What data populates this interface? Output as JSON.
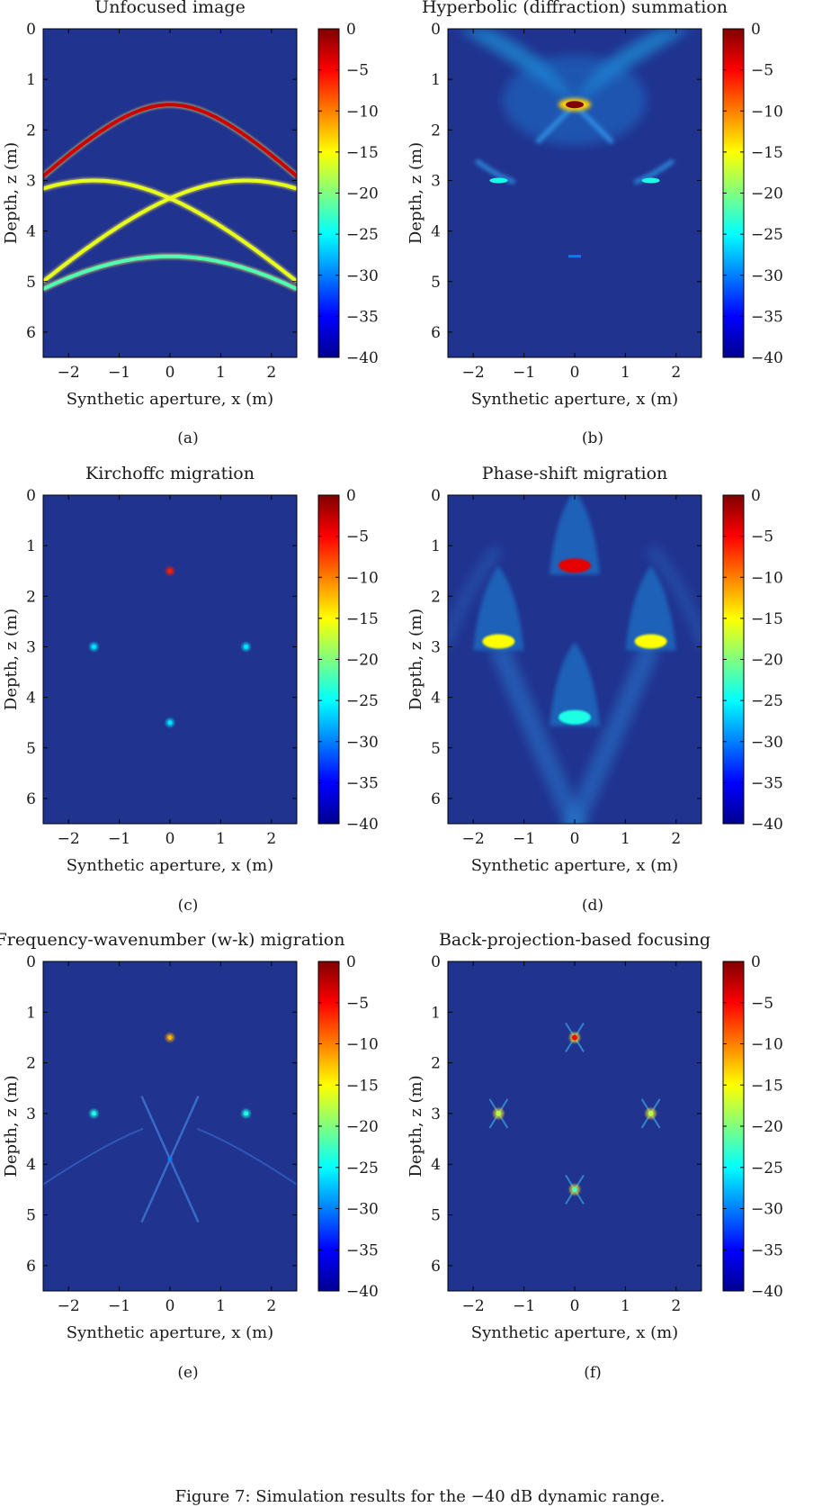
{
  "figure": {
    "caption": "Figure 7: Simulation results for the −40 dB dynamic range."
  },
  "colors": {
    "background": "#20338f",
    "jet": [
      "#00008f",
      "#0000ff",
      "#00ffff",
      "#ffff00",
      "#ff0000",
      "#800000"
    ]
  },
  "chart_data": [
    {
      "type": "heatmap",
      "panel": "(a)",
      "title": "Unfocused image",
      "xlabel": "Synthetic aperture, x (m)",
      "ylabel": "Depth, z (m)",
      "xlim": [
        -2.5,
        2.5
      ],
      "ylim": [
        6.5,
        0
      ],
      "xticks": [
        -2,
        -1,
        0,
        1,
        2
      ],
      "yticks": [
        0,
        1,
        2,
        3,
        4,
        5,
        6
      ],
      "colorbar": {
        "range": [
          -40,
          0
        ],
        "ticks": [
          0,
          -5,
          -10,
          -15,
          -20,
          -25,
          -30,
          -35,
          -40
        ]
      },
      "features": [
        {
          "kind": "hyperbola",
          "x0": 0,
          "z0": 1.5,
          "dB": -3
        },
        {
          "kind": "hyperbola",
          "x0": -1.5,
          "z0": 3.0,
          "dB": -16
        },
        {
          "kind": "hyperbola",
          "x0": 1.5,
          "z0": 3.0,
          "dB": -16
        },
        {
          "kind": "hyperbola",
          "x0": 0,
          "z0": 4.5,
          "dB": -22
        }
      ]
    },
    {
      "type": "heatmap",
      "panel": "(b)",
      "title": "Hyperbolic (diffraction) summation",
      "xlabel": "Synthetic aperture, x (m)",
      "ylabel": "Depth, z (m)",
      "xlim": [
        -2.5,
        2.5
      ],
      "ylim": [
        6.5,
        0
      ],
      "xticks": [
        -2,
        -1,
        0,
        1,
        2
      ],
      "yticks": [
        0,
        1,
        2,
        3,
        4,
        5,
        6
      ],
      "colorbar": {
        "range": [
          -40,
          0
        ],
        "ticks": [
          0,
          -5,
          -10,
          -15,
          -20,
          -25,
          -30,
          -35,
          -40
        ]
      },
      "features": [
        {
          "kind": "fan",
          "x0": 0,
          "z0": 1.5,
          "dB": 0
        },
        {
          "kind": "streak",
          "x0": -1.5,
          "z0": 3.0,
          "dB": -24
        },
        {
          "kind": "streak",
          "x0": 1.5,
          "z0": 3.0,
          "dB": -24
        },
        {
          "kind": "dash",
          "x0": 0,
          "z0": 4.5,
          "dB": -30
        }
      ]
    },
    {
      "type": "heatmap",
      "panel": "(c)",
      "title": "Kirchoffc migration",
      "xlabel": "Synthetic aperture, x (m)",
      "ylabel": "Depth, z (m)",
      "xlim": [
        -2.5,
        2.5
      ],
      "ylim": [
        6.5,
        0
      ],
      "xticks": [
        -2,
        -1,
        0,
        1,
        2
      ],
      "yticks": [
        0,
        1,
        2,
        3,
        4,
        5,
        6
      ],
      "colorbar": {
        "range": [
          -40,
          0
        ],
        "ticks": [
          0,
          -5,
          -10,
          -15,
          -20,
          -25,
          -30,
          -35,
          -40
        ]
      },
      "features": [
        {
          "kind": "point",
          "x0": 0,
          "z0": 1.5,
          "dB": -6
        },
        {
          "kind": "point",
          "x0": -1.5,
          "z0": 3.0,
          "dB": -26
        },
        {
          "kind": "point",
          "x0": 1.5,
          "z0": 3.0,
          "dB": -26
        },
        {
          "kind": "point",
          "x0": 0,
          "z0": 4.5,
          "dB": -26
        }
      ]
    },
    {
      "type": "heatmap",
      "panel": "(d)",
      "title": "Phase-shift migration",
      "xlabel": "Synthetic aperture, x (m)",
      "ylabel": "Depth, z (m)",
      "xlim": [
        -2.5,
        2.5
      ],
      "ylim": [
        6.5,
        0
      ],
      "xticks": [
        -2,
        -1,
        0,
        1,
        2
      ],
      "yticks": [
        0,
        1,
        2,
        3,
        4,
        5,
        6
      ],
      "colorbar": {
        "range": [
          -40,
          0
        ],
        "ticks": [
          0,
          -5,
          -10,
          -15,
          -20,
          -25,
          -30,
          -35,
          -40
        ]
      },
      "features": [
        {
          "kind": "cone",
          "x0": 0,
          "z0": 1.5,
          "dB": -4
        },
        {
          "kind": "cone",
          "x0": -1.5,
          "z0": 3.0,
          "dB": -15
        },
        {
          "kind": "cone",
          "x0": 1.5,
          "z0": 3.0,
          "dB": -15
        },
        {
          "kind": "cone",
          "x0": 0,
          "z0": 4.5,
          "dB": -24
        }
      ]
    },
    {
      "type": "heatmap",
      "panel": "(e)",
      "title": "Frequency-wavenumber (w-k) migration",
      "xlabel": "Synthetic aperture, x (m)",
      "ylabel": "Depth, z (m)",
      "xlim": [
        -2.5,
        2.5
      ],
      "ylim": [
        6.5,
        0
      ],
      "xticks": [
        -2,
        -1,
        0,
        1,
        2
      ],
      "yticks": [
        0,
        1,
        2,
        3,
        4,
        5,
        6
      ],
      "colorbar": {
        "range": [
          -40,
          0
        ],
        "ticks": [
          0,
          -5,
          -10,
          -15,
          -20,
          -25,
          -30,
          -35,
          -40
        ]
      },
      "features": [
        {
          "kind": "point",
          "x0": 0,
          "z0": 1.5,
          "dB": -12
        },
        {
          "kind": "point",
          "x0": -1.5,
          "z0": 3.0,
          "dB": -24
        },
        {
          "kind": "point",
          "x0": 1.5,
          "z0": 3.0,
          "dB": -24
        },
        {
          "kind": "x-artifact",
          "x0": 0,
          "z0": 3.9,
          "dB": -30
        }
      ]
    },
    {
      "type": "heatmap",
      "panel": "(f)",
      "title": "Back-projection-based focusing",
      "xlabel": "Synthetic aperture, x (m)",
      "ylabel": "Depth, z (m)",
      "xlim": [
        -2.5,
        2.5
      ],
      "ylim": [
        6.5,
        0
      ],
      "xticks": [
        -2,
        -1,
        0,
        1,
        2
      ],
      "yticks": [
        0,
        1,
        2,
        3,
        4,
        5,
        6
      ],
      "colorbar": {
        "range": [
          -40,
          0
        ],
        "ticks": [
          0,
          -5,
          -10,
          -15,
          -20,
          -25,
          -30,
          -35,
          -40
        ]
      },
      "features": [
        {
          "kind": "star",
          "x0": 0,
          "z0": 1.5,
          "dB": -5
        },
        {
          "kind": "star",
          "x0": -1.5,
          "z0": 3.0,
          "dB": -18
        },
        {
          "kind": "star",
          "x0": 1.5,
          "z0": 3.0,
          "dB": -18
        },
        {
          "kind": "star",
          "x0": 0,
          "z0": 4.5,
          "dB": -22
        }
      ]
    }
  ]
}
